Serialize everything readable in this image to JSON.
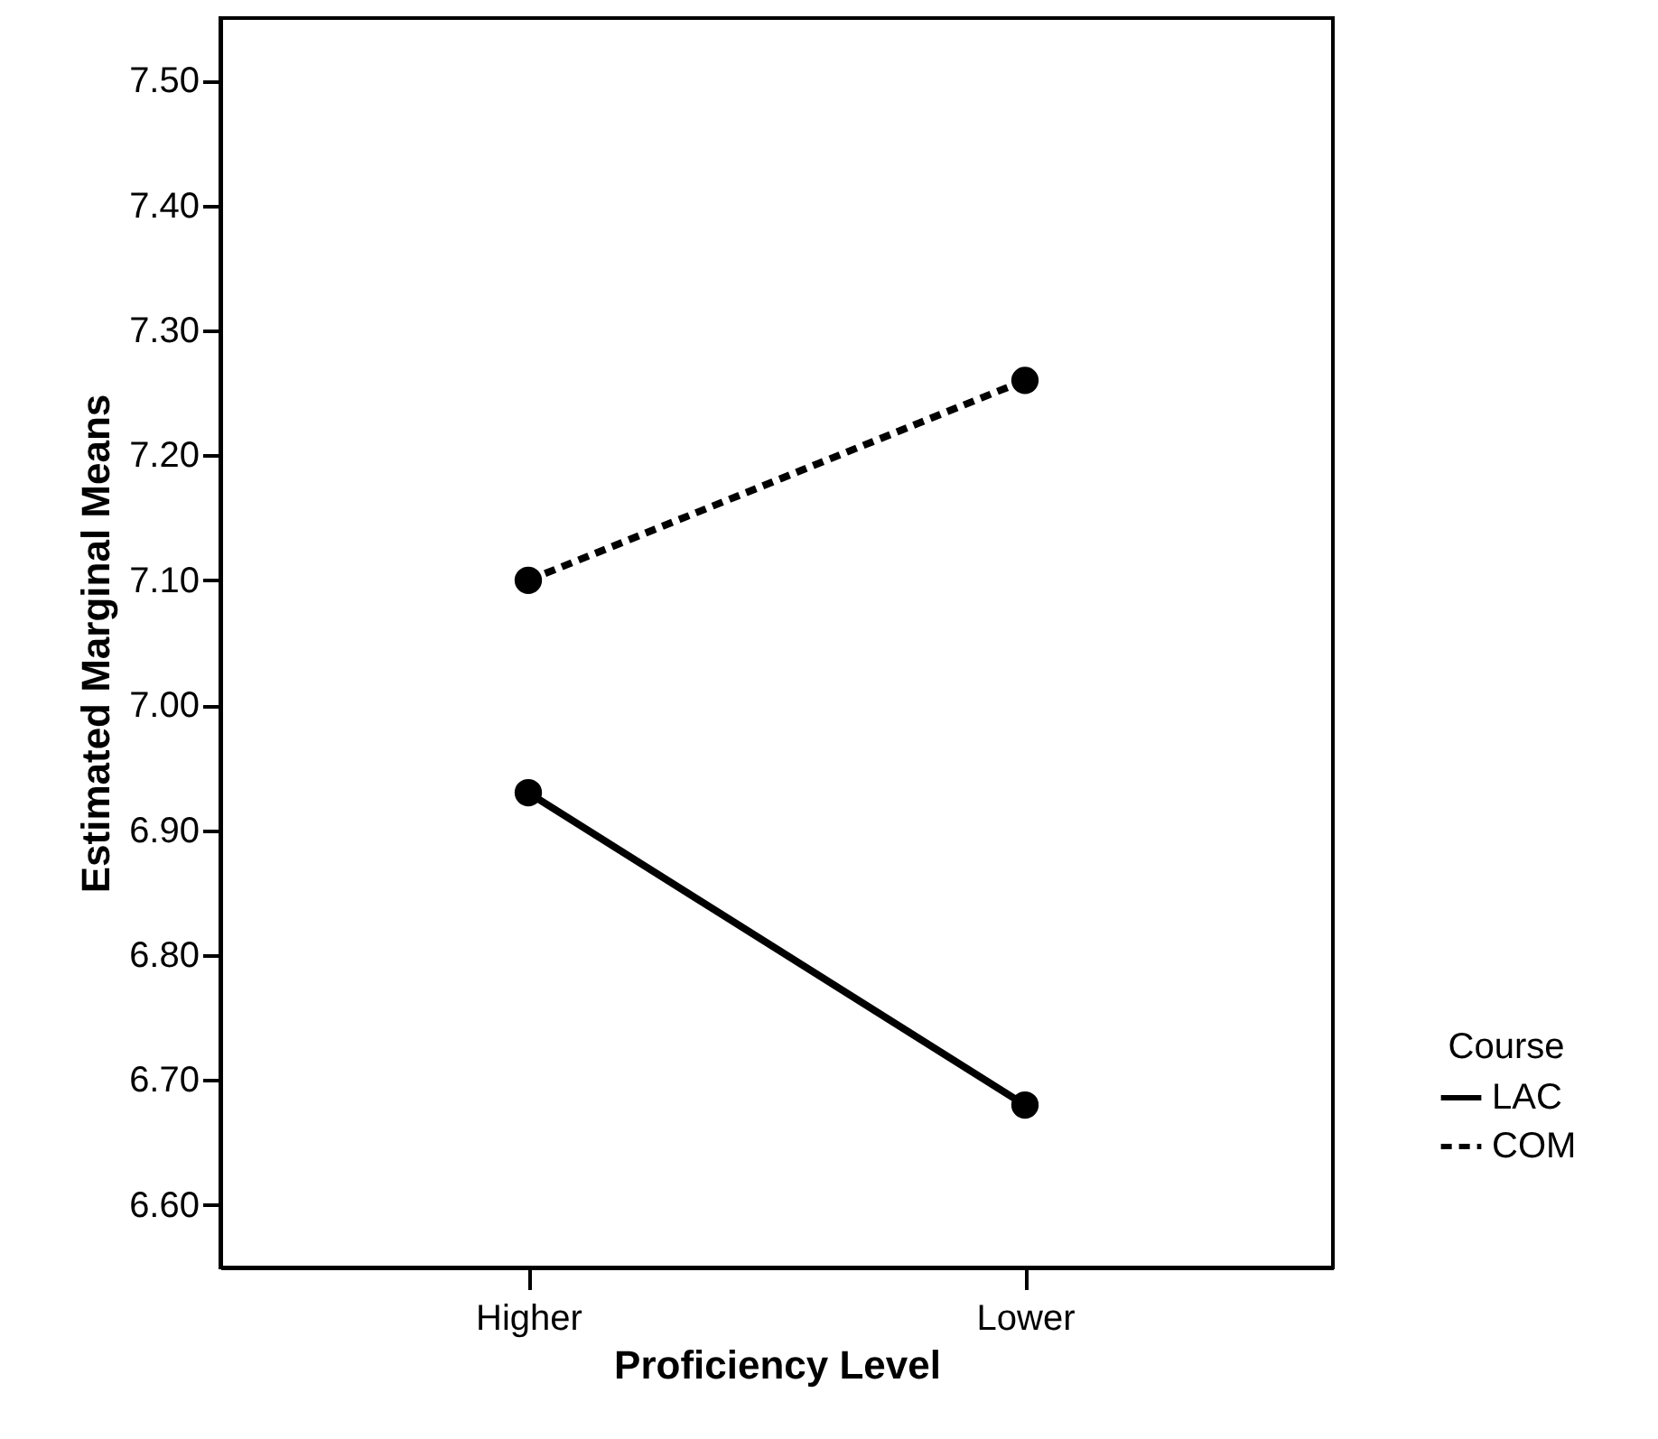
{
  "chart_data": {
    "type": "line",
    "xlabel": "Proficiency Level",
    "ylabel": "Estimated Marginal Means",
    "legend_title": "Course",
    "categories": [
      "Higher",
      "Lower"
    ],
    "series": [
      {
        "name": "LAC",
        "color": "#000000",
        "line_style": "solid",
        "values": [
          6.93,
          6.68
        ]
      },
      {
        "name": "COM",
        "color": "#000000",
        "line_style": "dashed",
        "values": [
          7.1,
          7.26
        ]
      }
    ],
    "ylim": [
      6.55,
      7.55
    ],
    "yticks": [
      {
        "value": 6.6,
        "label": "6.60"
      },
      {
        "value": 6.7,
        "label": "6.70"
      },
      {
        "value": 6.8,
        "label": "6.80"
      },
      {
        "value": 6.9,
        "label": "6.90"
      },
      {
        "value": 7.0,
        "label": "7.00"
      },
      {
        "value": 7.1,
        "label": "7.10"
      },
      {
        "value": 7.2,
        "label": "7.20"
      },
      {
        "value": 7.3,
        "label": "7.30"
      },
      {
        "value": 7.4,
        "label": "7.40"
      },
      {
        "value": 7.5,
        "label": "7.50"
      }
    ],
    "grid": false,
    "legend": "right",
    "marker": "circle"
  }
}
